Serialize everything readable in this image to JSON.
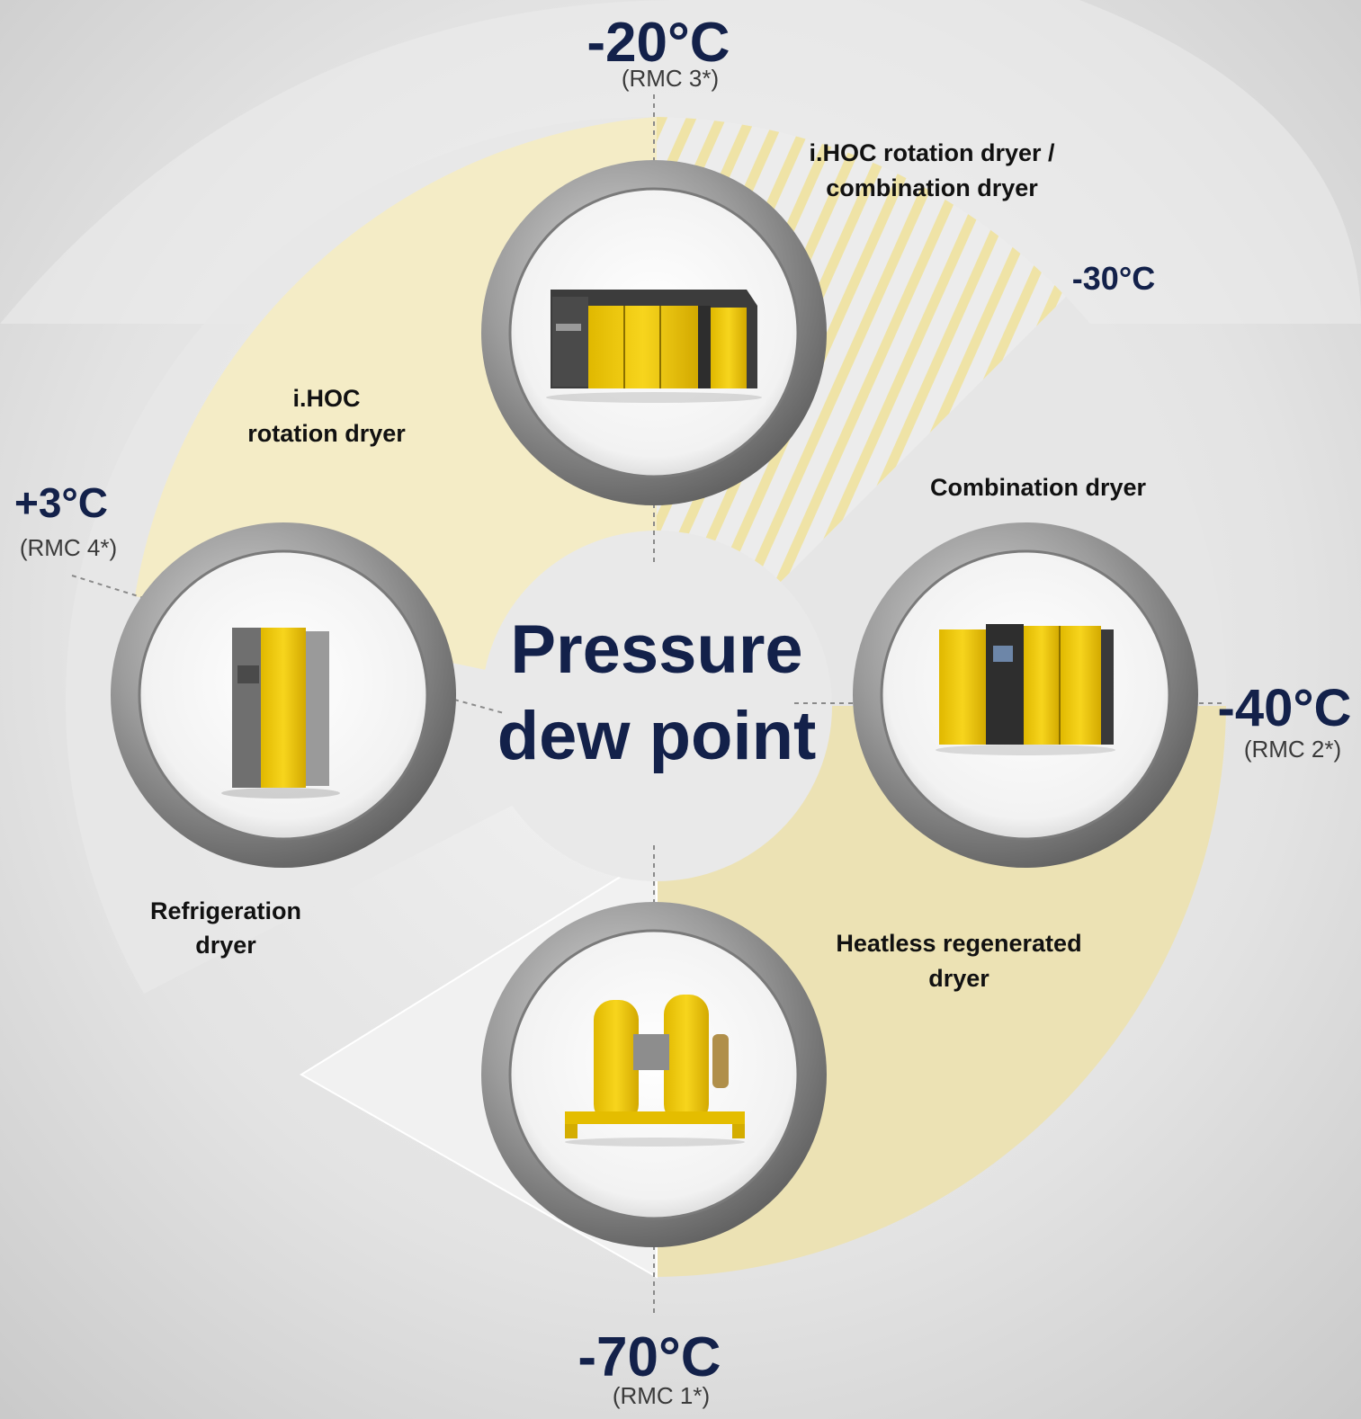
{
  "center": {
    "line1": "Pressure",
    "line2": "dew point"
  },
  "markers": {
    "top": {
      "value": "-20°C",
      "sub": "(RMC 3*)"
    },
    "upper_right": {
      "value": "-30°C"
    },
    "right": {
      "value": "-40°C",
      "sub": "(RMC 2*)"
    },
    "bottom": {
      "value": "-70°C",
      "sub": "(RMC 1*)"
    },
    "left": {
      "value": "+3°C",
      "sub": "(RMC 4*)"
    }
  },
  "segments": {
    "top_right": {
      "line1": "i.HOC rotation dryer /",
      "line2": "combination dryer"
    },
    "upper_left": {
      "line1": "i.HOC",
      "line2": "rotation dryer"
    },
    "right": {
      "line1": "Combination dryer"
    },
    "lower_right": {
      "line1": "Heatless regenerated",
      "line2": "dryer"
    },
    "lower_left": {
      "line1": "Refrigeration",
      "line2": "dryer"
    }
  },
  "colors": {
    "navy": "#13214a",
    "accent_yellow": "#f2d700",
    "segment_cream": "#f4ecc6",
    "segment_gray": "#e6e6e6"
  }
}
